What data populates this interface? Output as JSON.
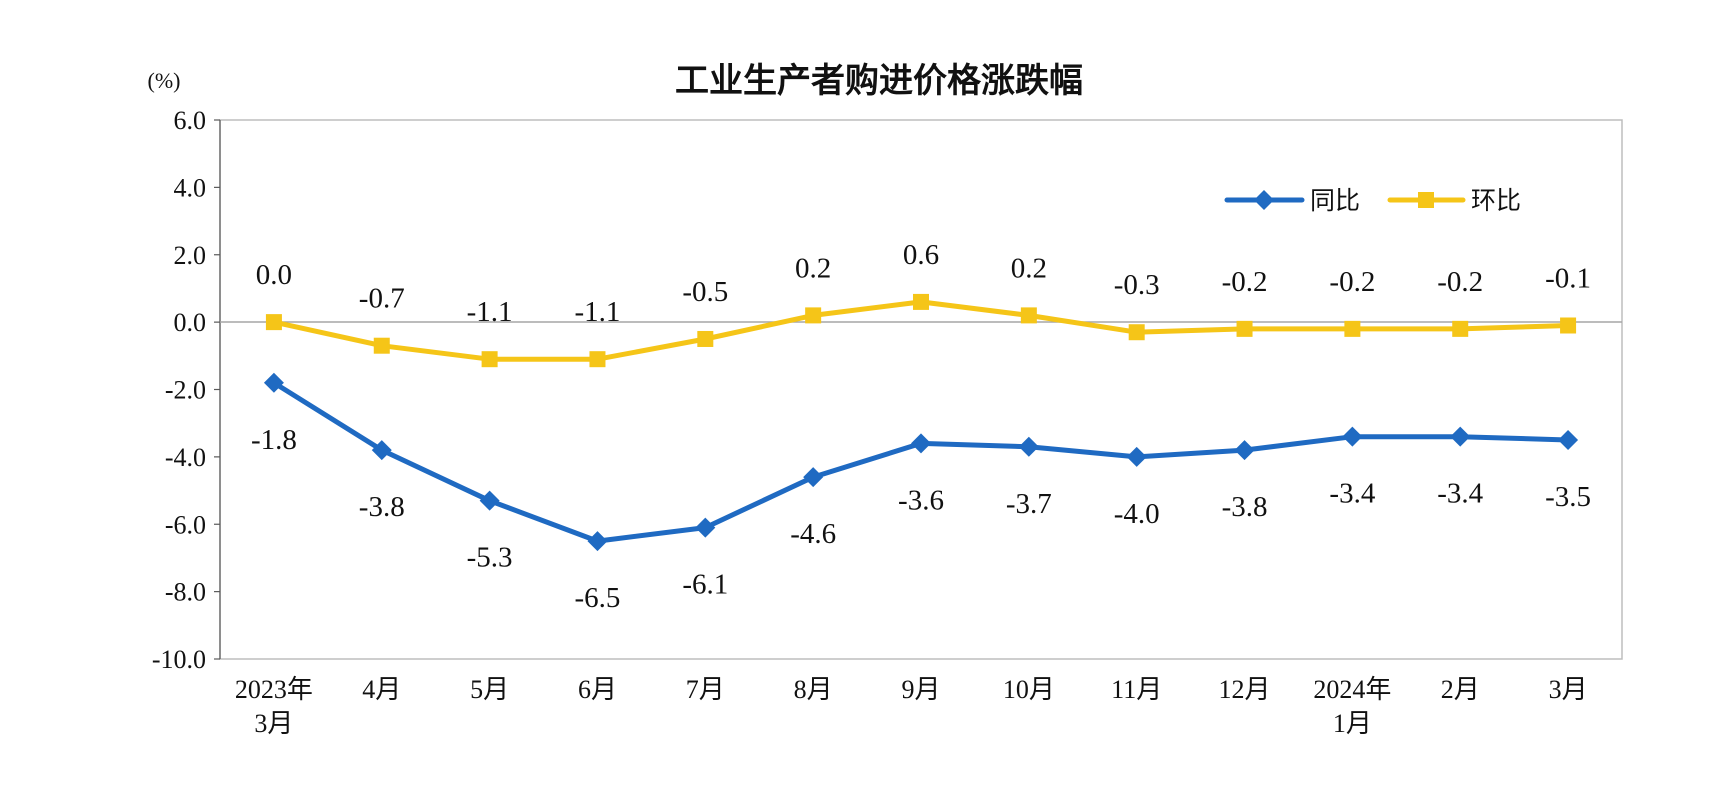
{
  "chart_data": {
    "type": "line",
    "title": "工业生产者购进价格涨跌幅",
    "unit_label": "(%)",
    "ylim": [
      -10,
      6
    ],
    "yticks": [
      6,
      4,
      2,
      0,
      -2,
      -4,
      -6,
      -8,
      -10
    ],
    "ytick_labels": [
      "6.0",
      "4.0",
      "2.0",
      "0.0",
      "-2.0",
      "-4.0",
      "-6.0",
      "-8.0",
      "-10.0"
    ],
    "categories": [
      [
        "2023年",
        "3月"
      ],
      [
        "4月"
      ],
      [
        "5月"
      ],
      [
        "6月"
      ],
      [
        "7月"
      ],
      [
        "8月"
      ],
      [
        "9月"
      ],
      [
        "10月"
      ],
      [
        "11月"
      ],
      [
        "12月"
      ],
      [
        "2024年",
        "1月"
      ],
      [
        "2月"
      ],
      [
        "3月"
      ]
    ],
    "grid": false,
    "legend_position": "top-right",
    "series": [
      {
        "name": "同比",
        "color": "#1f6ac2",
        "marker": "diamond",
        "label_position": "below",
        "values": [
          -1.8,
          -3.8,
          -5.3,
          -6.5,
          -6.1,
          -4.6,
          -3.6,
          -3.7,
          -4.0,
          -3.8,
          -3.4,
          -3.4,
          -3.5
        ],
        "labels": [
          "-1.8",
          "-3.8",
          "-5.3",
          "-6.5",
          "-6.1",
          "-4.6",
          "-3.6",
          "-3.7",
          "-4.0",
          "-3.8",
          "-3.4",
          "-3.4",
          "-3.5"
        ]
      },
      {
        "name": "环比",
        "color": "#f5c518",
        "marker": "square",
        "label_position": "above",
        "values": [
          0.0,
          -0.7,
          -1.1,
          -1.1,
          -0.5,
          0.2,
          0.6,
          0.2,
          -0.3,
          -0.2,
          -0.2,
          -0.2,
          -0.1
        ],
        "labels": [
          "0.0",
          "-0.7",
          "-1.1",
          "-1.1",
          "-0.5",
          "0.2",
          "0.6",
          "0.2",
          "-0.3",
          "-0.2",
          "-0.2",
          "-0.2",
          "-0.1"
        ]
      }
    ]
  }
}
